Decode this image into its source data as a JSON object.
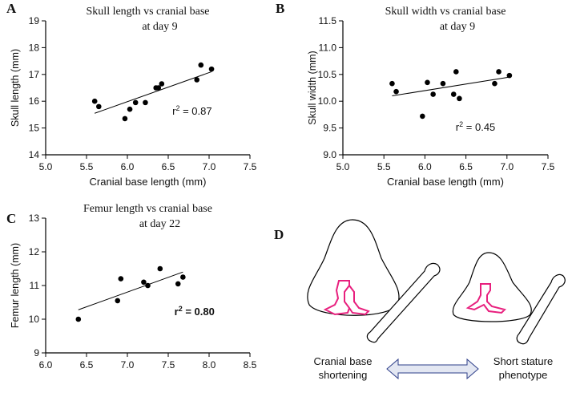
{
  "chart_data": [
    {
      "type": "scatter",
      "panel": "A",
      "title": [
        "Skull length vs cranial base",
        "at day 9"
      ],
      "x_label": "Cranial base length (mm)",
      "y_label": "Skull length (mm)",
      "x": [
        5.6,
        5.65,
        5.97,
        6.03,
        6.1,
        6.22,
        6.35,
        6.38,
        6.42,
        6.85,
        6.9,
        7.03
      ],
      "values": [
        16.0,
        15.8,
        15.35,
        15.7,
        15.95,
        15.95,
        16.5,
        16.5,
        16.65,
        16.8,
        17.35,
        17.2
      ],
      "color": "#000000",
      "trendline": {
        "x": [
          5.6,
          7.03
        ],
        "y": [
          15.55,
          17.1
        ]
      },
      "annotation": [
        "r",
        "2",
        " = 0.87"
      ],
      "annotation_bold": false,
      "xlim": [
        5.0,
        7.5
      ],
      "xticks": [
        {
          "value": 5,
          "label": "5.0"
        },
        5.5,
        {
          "value": 6,
          "label": "6.0"
        },
        6.5,
        {
          "value": 7,
          "label": "7.0"
        },
        7.5
      ],
      "ylim": [
        14,
        19
      ],
      "yticks": [
        14,
        15,
        16,
        17,
        18,
        19
      ]
    },
    {
      "type": "scatter",
      "panel": "B",
      "title": [
        "Skull width vs cranial base",
        "at day 9"
      ],
      "x_label": "Cranial base length (mm)",
      "y_label": "Skull width (mm)",
      "x": [
        5.6,
        5.65,
        5.97,
        6.03,
        6.1,
        6.22,
        6.35,
        6.38,
        6.42,
        6.85,
        6.9,
        7.03
      ],
      "values": [
        10.33,
        10.18,
        9.72,
        10.35,
        10.13,
        10.33,
        10.13,
        10.55,
        10.05,
        10.33,
        10.55,
        10.48
      ],
      "color": "#000000",
      "trendline": {
        "x": [
          5.6,
          7.03
        ],
        "y": [
          10.1,
          10.45
        ]
      },
      "annotation": [
        "r",
        "2",
        " = 0.45"
      ],
      "annotation_bold": false,
      "xlim": [
        5.0,
        7.5
      ],
      "xticks": [
        {
          "value": 5,
          "label": "5.0"
        },
        5.5,
        {
          "value": 6,
          "label": "6.0"
        },
        6.5,
        {
          "value": 7,
          "label": "7.0"
        },
        7.5
      ],
      "ylim": [
        9.0,
        11.5
      ],
      "yticks": [
        {
          "value": 9,
          "label": "9.0"
        },
        9.5,
        {
          "value": 10,
          "label": "10.0"
        },
        10.5,
        {
          "value": 11,
          "label": "11.0"
        },
        11.5
      ]
    },
    {
      "type": "scatter",
      "panel": "C",
      "title": [
        "Femur length vs cranial base",
        "at day 22"
      ],
      "y_label": "Femur length (mm)",
      "x": [
        6.4,
        6.88,
        6.92,
        7.2,
        7.25,
        7.4,
        7.62,
        7.68
      ],
      "values": [
        10.0,
        10.55,
        11.2,
        11.1,
        11.0,
        11.5,
        11.05,
        11.25
      ],
      "color": "#000000",
      "trendline": {
        "x": [
          6.4,
          7.68
        ],
        "y": [
          10.28,
          11.4
        ]
      },
      "annotation": [
        "r",
        "2",
        " = 0.80"
      ],
      "annotation_bold": true,
      "xlim": [
        6.0,
        8.5
      ],
      "xticks": [
        {
          "value": 6,
          "label": "6.0"
        },
        6.5,
        {
          "value": 7,
          "label": "7.0"
        },
        7.5,
        {
          "value": 8,
          "label": "8.0"
        },
        8.5
      ],
      "ylim": [
        9,
        13
      ],
      "yticks": [
        9,
        10,
        11,
        12,
        13
      ]
    }
  ],
  "diagram": {
    "panel": "D",
    "left_text": [
      "Cranial base",
      "shortening"
    ],
    "right_text": [
      "Short stature",
      "phenotype"
    ]
  }
}
